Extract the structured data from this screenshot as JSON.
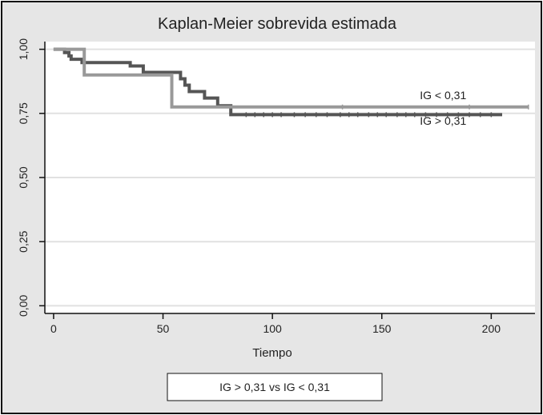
{
  "chart_data": {
    "type": "line",
    "title": "Kaplan-Meier sobrevida estimada",
    "xlabel": "Tiempo",
    "ylabel": "",
    "xlim": [
      -4,
      220
    ],
    "ylim": [
      -0.03,
      1.03
    ],
    "x_ticks": [
      0,
      50,
      100,
      150,
      200
    ],
    "x_tick_labels": [
      "0",
      "50",
      "100",
      "150",
      "200"
    ],
    "y_ticks": [
      0,
      0.25,
      0.5,
      0.75,
      1.0
    ],
    "y_tick_labels": [
      "0,00",
      "0,25",
      "0,50",
      "0,75",
      "1,00"
    ],
    "grid": true,
    "legend_position": "bottom-center",
    "legend_text": "IG > 0,31 vs IG < 0,31",
    "series": [
      {
        "name": "IG > 0,31",
        "color": "#555555",
        "step": true,
        "points": [
          [
            0,
            1.0
          ],
          [
            5,
            1.0
          ],
          [
            5,
            0.987
          ],
          [
            7,
            0.987
          ],
          [
            7,
            0.974
          ],
          [
            8,
            0.974
          ],
          [
            8,
            0.961
          ],
          [
            13,
            0.961
          ],
          [
            13,
            0.948
          ],
          [
            35,
            0.948
          ],
          [
            35,
            0.935
          ],
          [
            41,
            0.935
          ],
          [
            41,
            0.91
          ],
          [
            58,
            0.91
          ],
          [
            58,
            0.885
          ],
          [
            60,
            0.885
          ],
          [
            60,
            0.86
          ],
          [
            62,
            0.86
          ],
          [
            62,
            0.835
          ],
          [
            69,
            0.835
          ],
          [
            69,
            0.81
          ],
          [
            75,
            0.81
          ],
          [
            75,
            0.78
          ],
          [
            81,
            0.78
          ],
          [
            81,
            0.745
          ],
          [
            205,
            0.745
          ]
        ],
        "censored": [
          88,
          92,
          96,
          100,
          104,
          110,
          115,
          120,
          125,
          131,
          135,
          139,
          144,
          148,
          152,
          157,
          161,
          165,
          170,
          175,
          180,
          185,
          190,
          195,
          200
        ]
      },
      {
        "name": "IG < 0,31",
        "color": "#999999",
        "step": true,
        "points": [
          [
            0,
            1.0
          ],
          [
            14,
            1.0
          ],
          [
            14,
            0.9
          ],
          [
            54,
            0.9
          ],
          [
            54,
            0.775
          ],
          [
            217,
            0.775
          ]
        ],
        "censored": [
          132,
          190,
          217
        ]
      }
    ],
    "annotations": [
      {
        "text": "IG < 0,31",
        "x": 178,
        "y": 0.805
      },
      {
        "text": "IG > 0,31",
        "x": 178,
        "y": 0.705
      }
    ]
  }
}
